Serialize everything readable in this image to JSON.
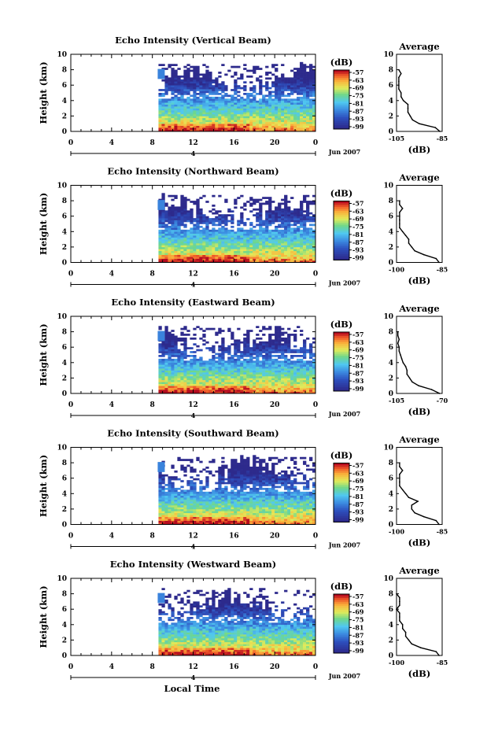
{
  "figure": {
    "x_axis_title": "Local Time",
    "date_label": "Jun 2007",
    "day_label": "4",
    "average_title": "Average",
    "colorbar_unit": "(dB)",
    "average_xlabel": "(dB)"
  },
  "chart_data": [
    {
      "type": "heatmap",
      "title": "Echo Intensity (Vertical Beam)",
      "ylabel": "Height (km)",
      "xlabel": "Local Time",
      "x_ticks": [
        "0",
        "4",
        "8",
        "12",
        "16",
        "20",
        "0"
      ],
      "y_ticks": [
        "0",
        "2",
        "4",
        "6",
        "8",
        "10"
      ],
      "xlim": [
        0,
        24
      ],
      "ylim": [
        0,
        10
      ],
      "data_start_hour": 8.6,
      "colorbar": {
        "label": "(dB)",
        "ticks": [
          "-57",
          "-63",
          "-69",
          "-75",
          "-81",
          "-87",
          "-93",
          "-99"
        ],
        "colors": [
          "#a50026",
          "#f46d43",
          "#fee08b",
          "#d9ef8b",
          "#66bd63",
          "#4fc3f7",
          "#2166ac",
          "#2d2a8c"
        ]
      },
      "profile": {
        "title": "Average",
        "xlabel": "(dB)",
        "x_ticks": [
          "-105",
          "-85"
        ],
        "xlim": [
          -105,
          -85
        ],
        "heights": [
          0,
          0.5,
          1,
          1.5,
          2,
          2.5,
          3,
          3.5,
          4,
          4.5,
          5,
          5.5,
          6,
          6.5,
          7,
          7.5,
          8
        ],
        "values": [
          -86,
          -88,
          -95,
          -98,
          -99,
          -100,
          -100,
          -100,
          -102,
          -103,
          -103,
          -104,
          -104,
          -104,
          -104,
          -103,
          -104
        ]
      }
    },
    {
      "type": "heatmap",
      "title": "Echo Intensity (Northward Beam)",
      "ylabel": "Height (km)",
      "xlabel": "Local Time",
      "x_ticks": [
        "0",
        "4",
        "8",
        "12",
        "16",
        "20",
        "0"
      ],
      "y_ticks": [
        "0",
        "2",
        "4",
        "6",
        "8",
        "10"
      ],
      "xlim": [
        0,
        24
      ],
      "ylim": [
        0,
        10
      ],
      "data_start_hour": 8.6,
      "colorbar": {
        "label": "(dB)",
        "ticks": [
          "-57",
          "-63",
          "-69",
          "-75",
          "-81",
          "-87",
          "-93",
          "-99"
        ],
        "colors": [
          "#a50026",
          "#f46d43",
          "#fee08b",
          "#d9ef8b",
          "#66bd63",
          "#4fc3f7",
          "#2166ac",
          "#2d2a8c"
        ]
      },
      "profile": {
        "title": "Average",
        "xlabel": "(dB)",
        "x_ticks": [
          "-100",
          "-85"
        ],
        "xlim": [
          -100,
          -85
        ],
        "heights": [
          0,
          0.5,
          1,
          1.5,
          2,
          2.5,
          3,
          3.5,
          4,
          4.5,
          5,
          5.5,
          6,
          6.5,
          7,
          7.5,
          8
        ],
        "values": [
          -86,
          -87,
          -91,
          -94,
          -95,
          -96,
          -96,
          -97,
          -98,
          -99,
          -99,
          -99,
          -99,
          -99,
          -98,
          -99,
          -99
        ]
      }
    },
    {
      "type": "heatmap",
      "title": "Echo Intensity (Eastward Beam)",
      "ylabel": "Height (km)",
      "xlabel": "Local Time",
      "x_ticks": [
        "0",
        "4",
        "8",
        "12",
        "16",
        "20",
        "0"
      ],
      "y_ticks": [
        "0",
        "2",
        "4",
        "6",
        "8",
        "10"
      ],
      "xlim": [
        0,
        24
      ],
      "ylim": [
        0,
        10
      ],
      "data_start_hour": 8.6,
      "colorbar": {
        "label": "(dB)",
        "ticks": [
          "-57",
          "-63",
          "-69",
          "-75",
          "-81",
          "-87",
          "-93",
          "-99"
        ],
        "colors": [
          "#a50026",
          "#f46d43",
          "#fee08b",
          "#d9ef8b",
          "#66bd63",
          "#4fc3f7",
          "#2166ac",
          "#2d2a8c"
        ]
      },
      "profile": {
        "title": "Average",
        "xlabel": "(dB)",
        "x_ticks": [
          "-105",
          "-70"
        ],
        "xlim": [
          -105,
          -70
        ],
        "heights": [
          0,
          0.5,
          1,
          1.5,
          2,
          2.5,
          3,
          3.5,
          4,
          4.5,
          5,
          5.5,
          6,
          6.5,
          7,
          7.5,
          8
        ],
        "values": [
          -72,
          -78,
          -88,
          -93,
          -95,
          -97,
          -97,
          -98,
          -100,
          -101,
          -102,
          -103,
          -103,
          -104,
          -103,
          -104,
          -104
        ]
      }
    },
    {
      "type": "heatmap",
      "title": "Echo Intensity (Southward Beam)",
      "ylabel": "Height (km)",
      "xlabel": "Local Time",
      "x_ticks": [
        "0",
        "4",
        "8",
        "12",
        "16",
        "20",
        "0"
      ],
      "y_ticks": [
        "0",
        "2",
        "4",
        "6",
        "8",
        "10"
      ],
      "xlim": [
        0,
        24
      ],
      "ylim": [
        0,
        10
      ],
      "data_start_hour": 8.6,
      "colorbar": {
        "label": "(dB)",
        "ticks": [
          "-57",
          "-63",
          "-69",
          "-75",
          "-81",
          "-87",
          "-93",
          "-99"
        ],
        "colors": [
          "#a50026",
          "#f46d43",
          "#fee08b",
          "#d9ef8b",
          "#66bd63",
          "#4fc3f7",
          "#2166ac",
          "#2d2a8c"
        ]
      },
      "profile": {
        "title": "Average",
        "xlabel": "(dB)",
        "x_ticks": [
          "-100",
          "-85"
        ],
        "xlim": [
          -100,
          -85
        ],
        "heights": [
          0,
          0.5,
          1,
          1.5,
          2,
          2.5,
          3,
          3.5,
          4,
          4.5,
          5,
          5.5,
          6,
          6.5,
          7,
          7.5,
          8
        ],
        "values": [
          -86,
          -87,
          -91,
          -94,
          -95,
          -95,
          -93,
          -96,
          -97,
          -98,
          -99,
          -99,
          -99,
          -99,
          -98,
          -99,
          -99
        ]
      }
    },
    {
      "type": "heatmap",
      "title": "Echo Intensity (Westward Beam)",
      "ylabel": "Height (km)",
      "xlabel": "Local Time",
      "x_ticks": [
        "0",
        "4",
        "8",
        "12",
        "16",
        "20",
        "0"
      ],
      "y_ticks": [
        "0",
        "2",
        "4",
        "6",
        "8",
        "10"
      ],
      "xlim": [
        0,
        24
      ],
      "ylim": [
        0,
        10
      ],
      "data_start_hour": 8.6,
      "colorbar": {
        "label": "(dB)",
        "ticks": [
          "-57",
          "-63",
          "-69",
          "-75",
          "-81",
          "-87",
          "-93",
          "-99"
        ],
        "colors": [
          "#a50026",
          "#f46d43",
          "#fee08b",
          "#d9ef8b",
          "#66bd63",
          "#4fc3f7",
          "#2166ac",
          "#2d2a8c"
        ]
      },
      "profile": {
        "title": "Average",
        "xlabel": "(dB)",
        "x_ticks": [
          "-100",
          "-85"
        ],
        "xlim": [
          -100,
          -85
        ],
        "heights": [
          0,
          0.5,
          1,
          1.5,
          2,
          2.5,
          3,
          3.5,
          4,
          4.5,
          5,
          5.5,
          6,
          6.5,
          7,
          7.5,
          8
        ],
        "values": [
          -86,
          -87,
          -92,
          -95,
          -96,
          -97,
          -97,
          -98,
          -98,
          -99,
          -99,
          -99,
          -100,
          -99,
          -99,
          -99,
          -100
        ]
      }
    }
  ]
}
